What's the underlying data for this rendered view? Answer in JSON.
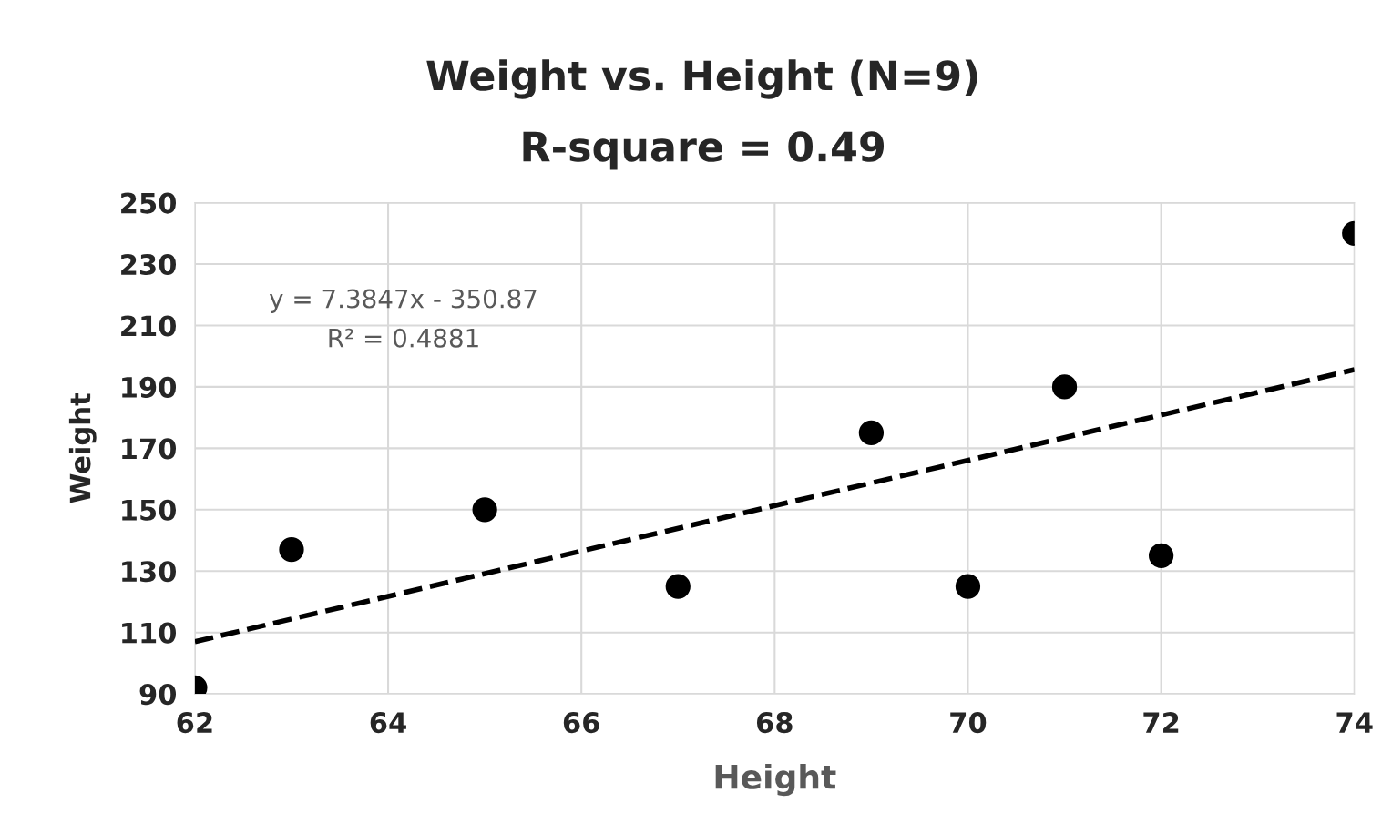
{
  "chart_data": {
    "type": "scatter",
    "title": "Weight vs. Height (N=9)",
    "subtitle": "R-square = 0.49",
    "xlabel": "Height",
    "ylabel": "Weight",
    "xlim": [
      62,
      74
    ],
    "xticks": [
      62,
      64,
      66,
      68,
      70,
      72,
      74
    ],
    "ylim": [
      90,
      250
    ],
    "yticks": [
      90,
      110,
      130,
      150,
      170,
      190,
      210,
      230,
      250
    ],
    "grid": true,
    "legend": false,
    "marker": "circle",
    "series": [
      {
        "color": "#000000",
        "x": [
          62,
          63,
          65,
          67,
          69,
          70,
          71,
          72,
          74
        ],
        "values": [
          92,
          137,
          150,
          125,
          175,
          125,
          190,
          135,
          240
        ]
      },
      {
        "type": "line",
        "color": "#000000",
        "line_style": "dashed",
        "marker": "none",
        "x": [
          62,
          74
        ],
        "values": [
          107.0,
          195.6
        ]
      }
    ],
    "annotations": [
      "y = 7.3847x - 350.87",
      "R² = 0.4881"
    ]
  }
}
